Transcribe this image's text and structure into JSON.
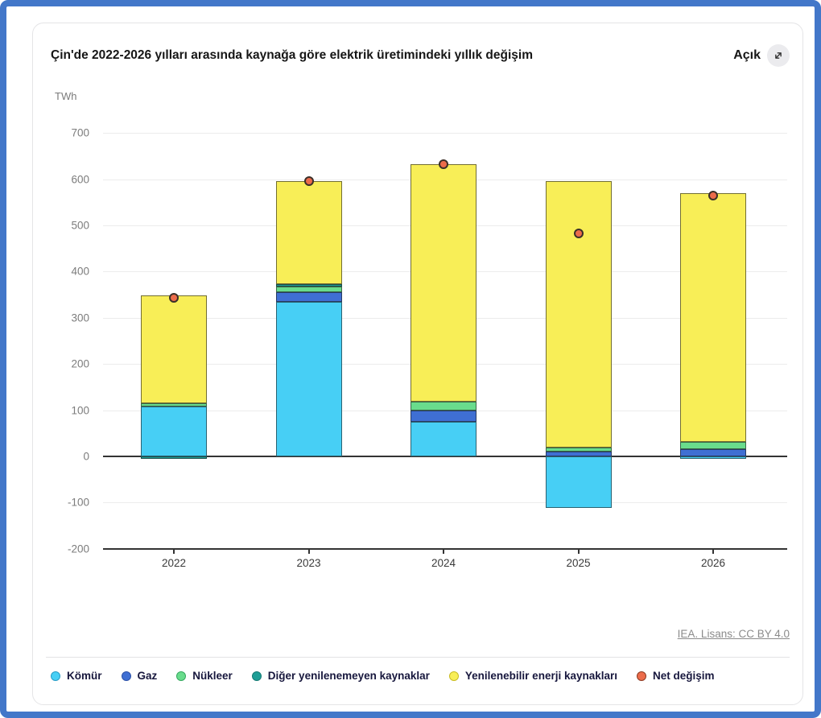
{
  "frame": {
    "border_color": "#4377c9"
  },
  "header": {
    "title": "Çin'de 2022-2026 yılları arasında kaynağa göre elektrik üretimindeki yıllık değişim",
    "open_label": "Açık"
  },
  "axis_unit": "TWh",
  "chart_data": {
    "type": "bar",
    "subtype": "stacked-bar-with-net-points",
    "title": "Çin'de 2022-2026 yılları arasında kaynağa göre elektrik üretimindeki yıllık değişim",
    "ylabel": "TWh",
    "ylim": [
      -200,
      700
    ],
    "y_ticks": [
      700,
      600,
      500,
      400,
      300,
      200,
      100,
      0,
      -100,
      -200
    ],
    "grid": true,
    "categories": [
      "2022",
      "2023",
      "2024",
      "2025",
      "2026"
    ],
    "series": [
      {
        "key": "coal",
        "name": "Kömür",
        "color": "#47cff5",
        "border": "#279cc6",
        "values": [
          108,
          335,
          75,
          -112,
          -5
        ]
      },
      {
        "key": "gas",
        "name": "Gaz",
        "color": "#3f6fd3",
        "border": "#2c51a8",
        "values": [
          0,
          20,
          24,
          10,
          15
        ]
      },
      {
        "key": "nuclear",
        "name": "Nükleer",
        "color": "#69dc8c",
        "border": "#35a85f",
        "values": [
          7,
          13,
          20,
          10,
          17
        ]
      },
      {
        "key": "other-nonrenewable",
        "name": "Diğer yenilenemeyen kaynaklar",
        "color": "#1f9e96",
        "border": "#147a74",
        "values": [
          -5,
          4,
          0,
          0,
          0
        ]
      },
      {
        "key": "renewables",
        "name": "Yenilenebilir enerji kaynakları",
        "color": "#f8ee57",
        "border": "#c9bc23",
        "values": [
          233,
          223,
          513,
          575,
          538
        ]
      }
    ],
    "points": {
      "key": "net-change",
      "name": "Net değişim",
      "color": "#ec6c4b",
      "border": "#8c3a22",
      "values": [
        343,
        595,
        632,
        483,
        565
      ]
    },
    "legend_position": "bottom"
  },
  "legend": {
    "items": [
      {
        "key": "coal",
        "label": "Kömür",
        "color": "#47cff5",
        "border": "#279cc6"
      },
      {
        "key": "gas",
        "label": "Gaz",
        "color": "#3f6fd3",
        "border": "#2c51a8"
      },
      {
        "key": "nuclear",
        "label": "Nükleer",
        "color": "#69dc8c",
        "border": "#35a85f"
      },
      {
        "key": "other-nonrenewable",
        "label": "Diğer yenilenemeyen kaynaklar",
        "color": "#1f9e96",
        "border": "#147a74"
      },
      {
        "key": "renewables",
        "label": "Yenilenebilir enerji kaynakları",
        "color": "#f8ee57",
        "border": "#c9bc23"
      },
      {
        "key": "net-change",
        "label": "Net değişim",
        "color": "#ec6c4b",
        "border": "#8c3a22"
      }
    ]
  },
  "footer": {
    "source": "IEA. Lisans: CC BY 4.0"
  }
}
